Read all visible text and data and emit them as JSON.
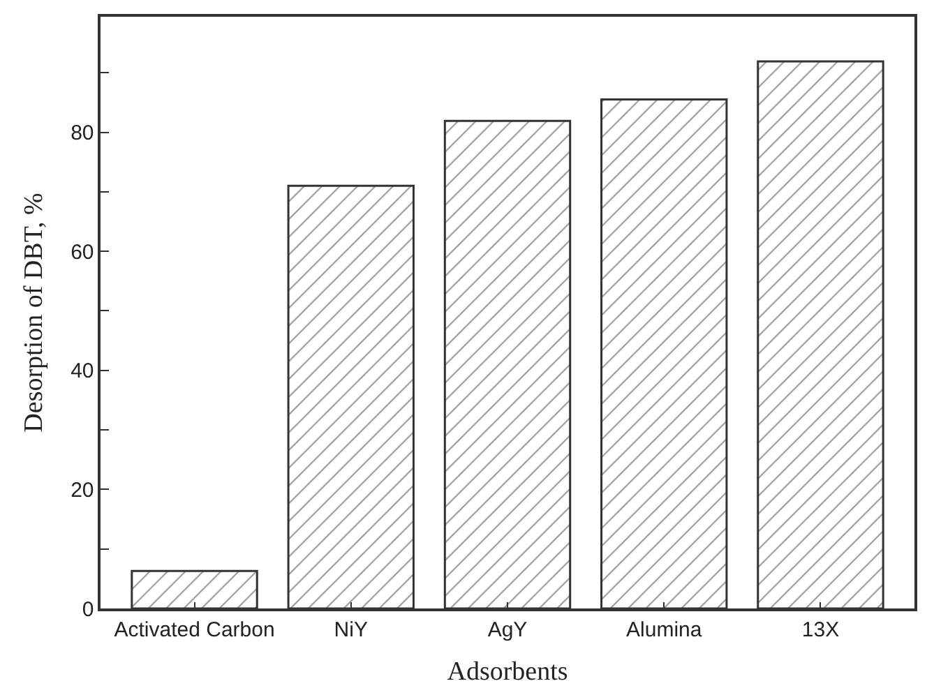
{
  "chart_data": {
    "type": "bar",
    "xlabel": "Adsorbents",
    "ylabel": "Desorption of DBT, %",
    "categories": [
      "Activated Carbon",
      "NiY",
      "AgY",
      "Alumina",
      "13X"
    ],
    "values": [
      6.3,
      71.0,
      81.9,
      85.5,
      91.9
    ],
    "color": "#333333",
    "ylim": [
      0,
      99.4
    ],
    "yticks": [
      0,
      {
        "value": 10,
        "label": null
      },
      20,
      {
        "value": 30,
        "label": null
      },
      40,
      {
        "value": 50,
        "label": null
      },
      60,
      {
        "value": 70,
        "label": null
      },
      80,
      {
        "value": 90,
        "label": null
      }
    ]
  }
}
